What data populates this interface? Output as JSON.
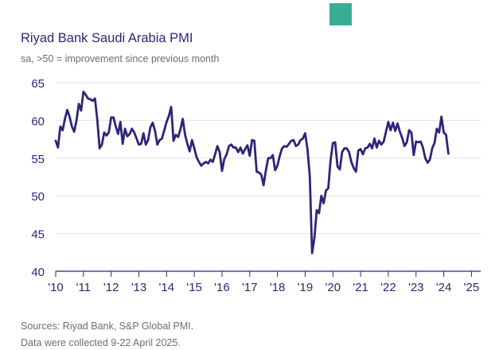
{
  "logo": {
    "color": "#39ae96"
  },
  "header": {
    "title": "Riyad Bank Saudi Arabia PMI",
    "subtitle": "sa, >50 = improvement since previous month"
  },
  "footer": {
    "sources": "Sources: Riyad Bank, S&P Global PMI.",
    "collected": "Data were collected 9-22 April 2025."
  },
  "colors": {
    "line": "#2c2678",
    "grid": "#e2e2e2",
    "axis": "#2c2678",
    "ticklabel": "#2c2678"
  },
  "chart_data": {
    "type": "line",
    "title": "Riyad Bank Saudi Arabia PMI",
    "subtitle": "sa, >50 = improvement since previous month",
    "xlabel": "",
    "ylabel": "",
    "ylim": [
      40,
      65
    ],
    "xlim": [
      2010.0,
      2025.333
    ],
    "yticks": [
      40,
      45,
      50,
      55,
      60,
      65
    ],
    "xticks": [
      {
        "value": 2010,
        "label": "'10"
      },
      {
        "value": 2011,
        "label": "'11"
      },
      {
        "value": 2012,
        "label": "'12"
      },
      {
        "value": 2013,
        "label": "'13"
      },
      {
        "value": 2014,
        "label": "'14"
      },
      {
        "value": 2015,
        "label": "'15"
      },
      {
        "value": 2016,
        "label": "'16"
      },
      {
        "value": 2017,
        "label": "'17"
      },
      {
        "value": 2018,
        "label": "'18"
      },
      {
        "value": 2019,
        "label": "'19"
      },
      {
        "value": 2020,
        "label": "'20"
      },
      {
        "value": 2021,
        "label": "'21"
      },
      {
        "value": 2022,
        "label": "'22"
      },
      {
        "value": 2023,
        "label": "'23"
      },
      {
        "value": 2024,
        "label": "'24"
      },
      {
        "value": 2025,
        "label": "'25"
      }
    ],
    "grid": "horizontal",
    "series": [
      {
        "name": "PMI",
        "x_start": 2010.0,
        "x_step": 0.0833333,
        "values": [
          57.3,
          56.4,
          59.2,
          58.7,
          60.2,
          61.4,
          60.5,
          59.2,
          58.5,
          60.0,
          62.2,
          61.3,
          63.8,
          63.4,
          62.9,
          62.8,
          62.6,
          62.9,
          60.1,
          56.3,
          56.8,
          58.4,
          58.0,
          58.4,
          60.4,
          60.4,
          59.2,
          58.2,
          59.8,
          56.9,
          58.9,
          57.9,
          58.2,
          58.9,
          58.4,
          57.6,
          56.8,
          56.9,
          58.3,
          56.8,
          57.4,
          59.1,
          59.7,
          58.6,
          56.8,
          57.4,
          57.6,
          58.7,
          59.8,
          60.6,
          61.8,
          57.3,
          58.1,
          57.8,
          58.8,
          60.2,
          58.1,
          56.9,
          55.9,
          57.4,
          56.3,
          55.1,
          54.5,
          54.0,
          54.3,
          54.5,
          54.3,
          54.8,
          54.5,
          55.5,
          56.6,
          55.8,
          53.3,
          54.9,
          55.5,
          56.6,
          56.8,
          56.4,
          56.4,
          55.8,
          56.4,
          55.6,
          56.2,
          56.7,
          55.3,
          57.4,
          57.3,
          53.2,
          53.1,
          52.8,
          51.4,
          53.4,
          55.0,
          55.0,
          55.4,
          53.4,
          54.0,
          55.3,
          56.3,
          56.6,
          56.5,
          56.9,
          57.3,
          57.4,
          56.6,
          56.8,
          57.4,
          57.6,
          58.3,
          56.2,
          52.6,
          42.4,
          44.4,
          48.1,
          47.7,
          50.0,
          49.0,
          50.7,
          51.0,
          54.7,
          57.0,
          57.1,
          53.9,
          53.5,
          55.8,
          56.3,
          56.3,
          55.8,
          54.5,
          53.7,
          53.2,
          56.0,
          56.2,
          55.5,
          56.3,
          56.4,
          56.9,
          56.3,
          57.6,
          56.4,
          57.3,
          56.8,
          57.2,
          58.5,
          59.8,
          58.7,
          59.7,
          58.6,
          59.6,
          58.5,
          57.7,
          56.6,
          57.1,
          58.7,
          58.4,
          55.4,
          57.2,
          57.1,
          57.2,
          56.4,
          55.0,
          54.4,
          54.8,
          56.3,
          57.0,
          58.9,
          58.4,
          60.5,
          58.4,
          58.1,
          55.6
        ]
      }
    ]
  }
}
